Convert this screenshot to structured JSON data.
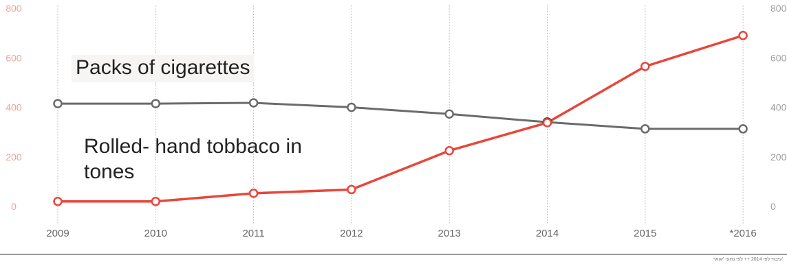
{
  "chart_data": {
    "type": "line",
    "title": "",
    "xlabel": "",
    "ylabel": "",
    "categories": [
      "2009",
      "2010",
      "2011",
      "2012",
      "2013",
      "2014",
      "2015",
      "*2016"
    ],
    "ylim": [
      0,
      800
    ],
    "yticks_left": [
      "0",
      "200",
      "400",
      "600",
      "800"
    ],
    "yticks_right": [
      "0",
      "200",
      "400",
      "600",
      "800"
    ],
    "grid": "vertical dotted",
    "series": [
      {
        "name": "Packs of cigarettes",
        "color": "#6b6b6b",
        "values": [
          415,
          415,
          418,
          400,
          373,
          340,
          313,
          313
        ]
      },
      {
        "name": "Rolled- hand tobbaco in tones",
        "color": "#e8463a",
        "values": [
          20,
          20,
          53,
          68,
          225,
          338,
          565,
          690
        ]
      }
    ]
  },
  "annotations": {
    "packs_label": "Packs of cigarettes",
    "rolled_label": "Rolled- hand tobbaco in tones"
  },
  "footnote": "עיבוד לפי 2014 ++ לפי נתוני 'יגואר'"
}
